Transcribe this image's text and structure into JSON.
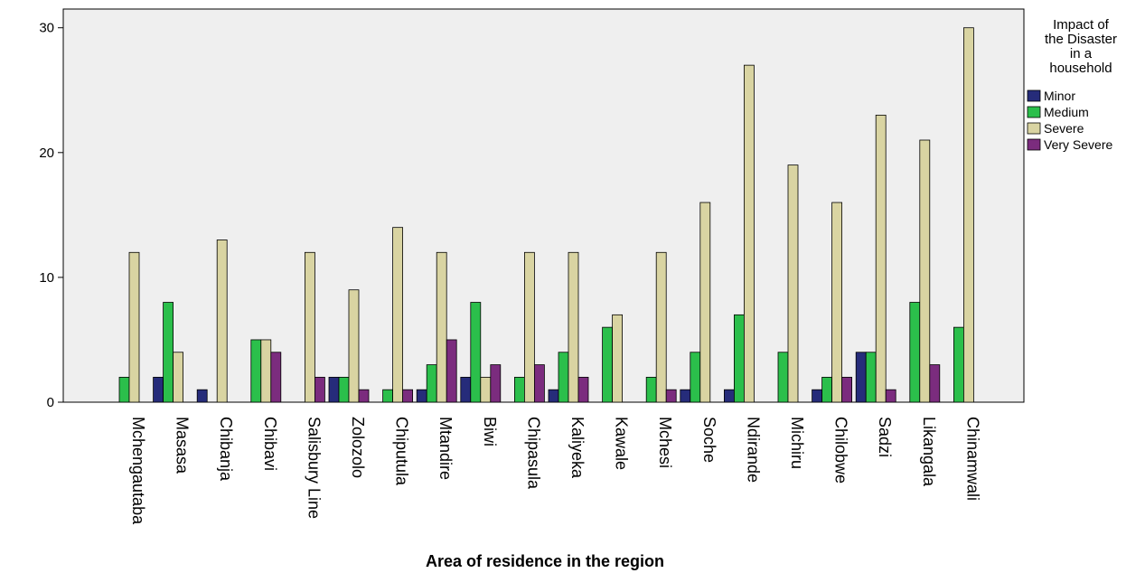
{
  "chart_data": {
    "type": "bar",
    "xlabel": "Area of residence in the region",
    "ylabel": "",
    "ylim": [
      0,
      31.5
    ],
    "yticks": [
      0,
      10,
      20,
      30
    ],
    "grid": false,
    "legend_position": "right",
    "legend_title_lines": [
      "Impact of",
      "the Disaster",
      "in a",
      "household"
    ],
    "categories": [
      "Mchengautaba",
      "Masasa",
      "Chibanja",
      "Chibavi",
      "Salisbury Line",
      "Zolozolo",
      "Chiputula",
      "Mtandire",
      "Biwi",
      "Chipasula",
      "Kaliyeka",
      "Kawale",
      "Mchesi",
      "Soche",
      "Ndirande",
      "Michiru",
      "Chilobwe",
      "Sadzi",
      "Likangala",
      "Chinamwali"
    ],
    "series": [
      {
        "name": "Minor",
        "color": "#262C7A",
        "values": [
          0,
          2,
          1,
          0,
          0,
          2,
          0,
          1,
          2,
          0,
          1,
          0,
          0,
          1,
          1,
          0,
          1,
          4,
          0,
          0
        ]
      },
      {
        "name": "Medium",
        "color": "#2BBF4B",
        "values": [
          2,
          8,
          0,
          5,
          0,
          2,
          1,
          3,
          8,
          2,
          4,
          6,
          2,
          4,
          7,
          4,
          2,
          4,
          8,
          6
        ]
      },
      {
        "name": "Severe",
        "color": "#D9D4A2",
        "values": [
          12,
          4,
          13,
          5,
          12,
          9,
          14,
          12,
          2,
          12,
          12,
          7,
          12,
          16,
          27,
          19,
          16,
          23,
          21,
          30
        ]
      },
      {
        "name": "Very Severe",
        "color": "#7B2C7E",
        "values": [
          0,
          0,
          0,
          4,
          2,
          1,
          1,
          5,
          3,
          3,
          2,
          0,
          1,
          0,
          0,
          0,
          2,
          1,
          3,
          0
        ]
      }
    ],
    "plot_background": "#EFEFEF"
  }
}
